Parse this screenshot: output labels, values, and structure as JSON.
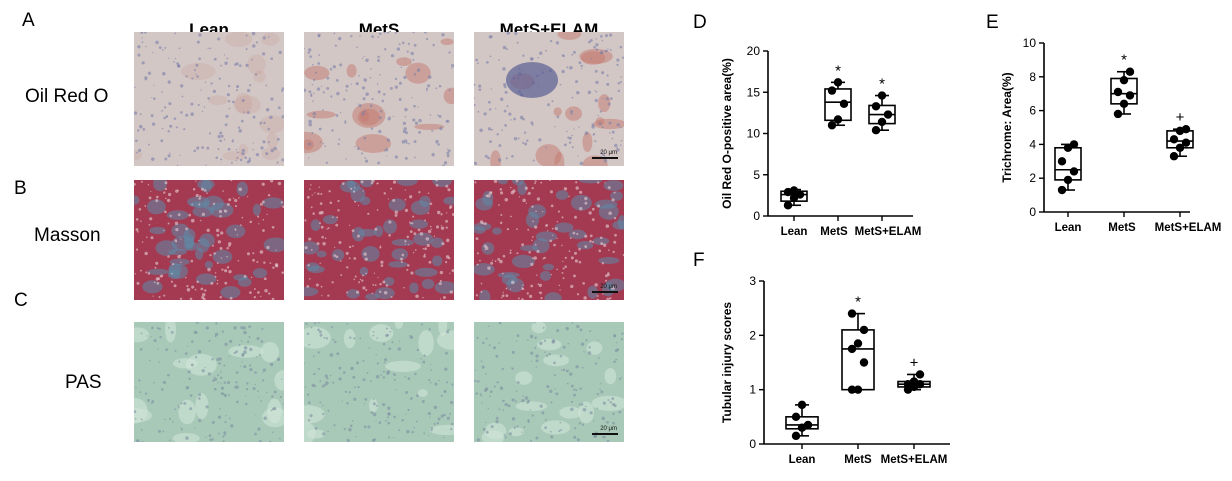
{
  "panels": {
    "A": "A",
    "B": "B",
    "C": "C",
    "D": "D",
    "E": "E",
    "F": "F"
  },
  "histology": {
    "columns": [
      "Lean",
      "MetS",
      "MetS+ELAM"
    ],
    "rows": [
      {
        "label": "Oil Red O",
        "panel": "A",
        "scale_label": "20 μm",
        "colors": {
          "base": "#d2c7c5",
          "spot": "#c47a70",
          "nuclei": "#7c7ea8"
        }
      },
      {
        "label": "Masson",
        "panel": "B",
        "scale_label": "20 μm",
        "colors": {
          "base": "#a43a52",
          "spot": "#5d8aa8",
          "nuclei": "#e8d0d6"
        }
      },
      {
        "label": "PAS",
        "panel": "C",
        "scale_label": "20 μm",
        "colors": {
          "base": "#a9c9b8",
          "spot": "#d2e6da",
          "nuclei": "#7d8fa0"
        }
      }
    ]
  },
  "chart_data": [
    {
      "type": "box",
      "panel": "D",
      "ylabel": "Oil Red O-positive area(%)",
      "xlabel": "",
      "categories": [
        "Lean",
        "MetS",
        "MetS+ELAM"
      ],
      "ylim": [
        0,
        20
      ],
      "yticks": [
        0,
        5,
        10,
        15,
        20
      ],
      "boxes": [
        {
          "min": 1.3,
          "q1": 1.8,
          "median": 2.6,
          "q3": 3.0,
          "max": 3.2
        },
        {
          "min": 11.0,
          "q1": 11.6,
          "median": 13.8,
          "q3": 15.4,
          "max": 16.2
        },
        {
          "min": 10.4,
          "q1": 11.2,
          "median": 12.3,
          "q3": 13.4,
          "max": 14.6
        }
      ],
      "points": [
        [
          1.3,
          2.2,
          2.6,
          2.9,
          3.1
        ],
        [
          11.0,
          11.7,
          13.6,
          15.2,
          16.2
        ],
        [
          10.4,
          11.4,
          12.3,
          13.3,
          14.6
        ]
      ],
      "annotations": [
        "",
        "*",
        "*"
      ]
    },
    {
      "type": "box",
      "panel": "E",
      "ylabel": "Trichrome: Area(%)",
      "xlabel": "",
      "categories": [
        "Lean",
        "MetS",
        "MetS+ELAM"
      ],
      "ylim": [
        0,
        10
      ],
      "yticks": [
        0,
        2,
        4,
        6,
        8,
        10
      ],
      "boxes": [
        {
          "min": 1.3,
          "q1": 1.9,
          "median": 2.5,
          "q3": 3.8,
          "max": 4.0
        },
        {
          "min": 5.8,
          "q1": 6.4,
          "median": 7.0,
          "q3": 7.9,
          "max": 8.3
        },
        {
          "min": 3.3,
          "q1": 3.8,
          "median": 4.2,
          "q3": 4.8,
          "max": 4.9
        }
      ],
      "points": [
        [
          1.3,
          1.9,
          2.4,
          3.0,
          3.8,
          4.0
        ],
        [
          5.8,
          6.4,
          6.9,
          7.1,
          7.8,
          8.3
        ],
        [
          3.3,
          3.8,
          4.1,
          4.3,
          4.8,
          4.9
        ]
      ],
      "annotations": [
        "",
        "*",
        "+"
      ]
    },
    {
      "type": "box",
      "panel": "F",
      "ylabel": "Tubular injury scores",
      "xlabel": "",
      "categories": [
        "Lean",
        "MetS",
        "MetS+ELAM"
      ],
      "ylim": [
        0,
        3
      ],
      "yticks": [
        0,
        1,
        2,
        3
      ],
      "boxes": [
        {
          "min": 0.15,
          "q1": 0.28,
          "median": 0.35,
          "q3": 0.5,
          "max": 0.72
        },
        {
          "min": 1.0,
          "q1": 1.0,
          "median": 1.75,
          "q3": 2.1,
          "max": 2.4
        },
        {
          "min": 1.0,
          "q1": 1.05,
          "median": 1.1,
          "q3": 1.15,
          "max": 1.28
        }
      ],
      "points": [
        [
          0.15,
          0.3,
          0.35,
          0.5,
          0.72
        ],
        [
          1.0,
          1.0,
          1.5,
          1.75,
          1.85,
          2.1,
          2.4
        ],
        [
          1.0,
          1.05,
          1.1,
          1.1,
          1.15,
          1.28
        ]
      ],
      "annotations": [
        "",
        "*",
        "+"
      ]
    }
  ]
}
